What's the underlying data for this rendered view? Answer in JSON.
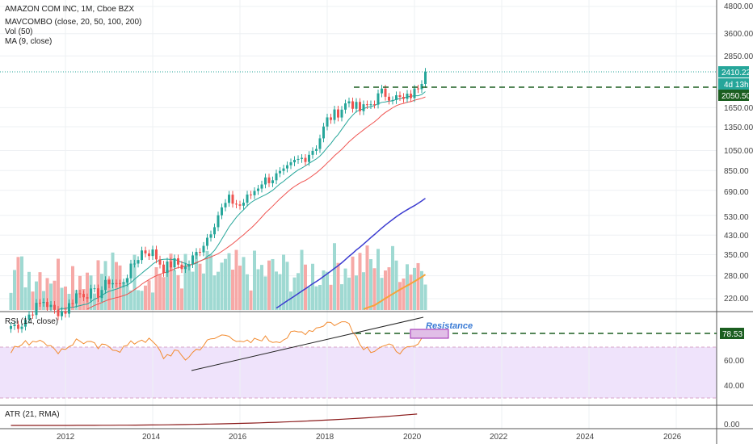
{
  "legend": {
    "symbol": "AMAZON COM INC, 1M, Cboe BZX",
    "mavcombo": "MAVCOMBO (close, 20, 50, 100, 200)",
    "vol": "Vol (50)",
    "ma": "MA (9, close)",
    "rsi": "RSI (14, close)",
    "atr": "ATR (21, RMA)"
  },
  "price_axis_labels": [
    "4800.00",
    "3600.00",
    "2850.00",
    "2050.50",
    "1650.00",
    "1350.00",
    "1050.00",
    "850.00",
    "690.00",
    "530.00",
    "430.00",
    "350.00",
    "280.00",
    "220.00"
  ],
  "rsi_axis_labels": [
    "78.53",
    "60.00",
    "40.00"
  ],
  "atr_axis_labels": [
    "0.00"
  ],
  "time_axis_labels": [
    "2012",
    "2014",
    "2016",
    "2018",
    "2020",
    "2022",
    "2024",
    "2026"
  ],
  "price_tags": {
    "last": "2410.22",
    "countdown": "4d 13h",
    "level": "2050.50"
  },
  "annotations": {
    "resistance": "Resistance"
  },
  "colors": {
    "up": "#26a69a",
    "down": "#ef5350",
    "ma9": "#26a69a",
    "ma20": "#ef5350",
    "ma50": "#3c3cd0",
    "ma100": "#f7a23b",
    "ma200": "#2a2a2a",
    "rsi": "#f28b30",
    "rsi_band": "#efe3fb",
    "level": "#1b5e20",
    "atr": "#8b1c1c"
  },
  "chart_data": {
    "type": "candlestick",
    "title": "AMAZON COM INC, 1M, Cboe BZX",
    "x_range": [
      "2010-09",
      "2027-10"
    ],
    "y_scale": "log",
    "y_range": [
      200,
      6000
    ],
    "resistance_level": 2050.5,
    "last_price": 2410.22,
    "months": [
      "2010-10",
      "2011-01",
      "2011-04",
      "2011-07",
      "2011-10",
      "2012-01",
      "2012-04",
      "2012-07",
      "2012-10",
      "2013-01",
      "2013-04",
      "2013-07",
      "2013-10",
      "2014-01",
      "2014-04",
      "2014-07",
      "2014-10",
      "2015-01",
      "2015-04",
      "2015-07",
      "2015-10",
      "2016-01",
      "2016-04",
      "2016-07",
      "2016-10",
      "2017-01",
      "2017-04",
      "2017-07",
      "2017-10",
      "2018-01",
      "2018-04",
      "2018-07",
      "2018-10",
      "2019-01",
      "2019-04",
      "2019-07",
      "2019-10",
      "2020-01",
      "2020-04"
    ],
    "close": [
      165,
      169,
      195,
      215,
      192,
      194,
      231,
      233,
      232,
      266,
      253,
      301,
      364,
      358,
      304,
      322,
      305,
      354,
      421,
      536,
      625,
      587,
      659,
      758,
      789,
      823,
      924,
      987,
      1105,
      1448,
      1581,
      1777,
      1599,
      1718,
      1926,
      1866,
      1777,
      1944,
      2410
    ],
    "open": [
      158,
      165,
      169,
      195,
      215,
      192,
      194,
      231,
      233,
      232,
      266,
      253,
      301,
      364,
      358,
      304,
      322,
      305,
      354,
      421,
      536,
      625,
      587,
      659,
      758,
      789,
      823,
      924,
      987,
      1105,
      1448,
      1581,
      1777,
      1599,
      1718,
      1926,
      1866,
      1777,
      1944
    ],
    "rsi": [
      60,
      65,
      70,
      72,
      58,
      62,
      70,
      68,
      62,
      64,
      60,
      66,
      72,
      68,
      52,
      58,
      50,
      60,
      68,
      74,
      78,
      66,
      68,
      73,
      70,
      72,
      78,
      80,
      84,
      90,
      88,
      92,
      66,
      60,
      64,
      62,
      58,
      62,
      73
    ],
    "rsi_trendline": [
      [
        "2014-11",
        51
      ],
      [
        "2020-03",
        89
      ]
    ],
    "rsi_level": 78.53,
    "ma": [
      "MA9",
      "MA20",
      "MA50",
      "MA100",
      "MA200"
    ],
    "atr_axis": "0.00"
  }
}
